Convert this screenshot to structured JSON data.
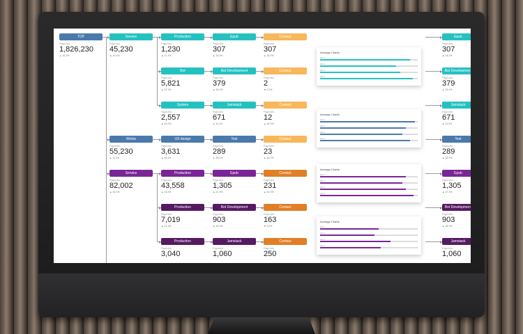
{
  "colors": {
    "teal": "#24c1c1",
    "blue": "#4a79ac",
    "purple": "#7a2596",
    "dark_purple": "#561a61",
    "orange_light": "#f9b65a",
    "orange_dark": "#e07f25",
    "up": "#3cb043",
    "down": "#d94040"
  },
  "root": {
    "label": "TOP",
    "sublabel": "Pageview",
    "value": "1,826,230",
    "change": "10.1%"
  },
  "level1": [
    {
      "label": "Service",
      "sublabel": "Pageview",
      "value": "45,230",
      "change": "10.1%"
    },
    {
      "label": "Works",
      "sublabel": "Pageview",
      "value": "55,230",
      "change": "11.1%"
    },
    {
      "label": "Service",
      "sublabel": "Pageview",
      "value": "82,002",
      "change": "10.1%"
    }
  ],
  "level2": [
    {
      "label": "Production",
      "sublabel": "Pageview",
      "value": "1,230",
      "change": "17.1%"
    },
    {
      "label": "Bot",
      "sublabel": "Pageview",
      "value": "5,821",
      "change": "17.1%"
    },
    {
      "label": "System",
      "sublabel": "Pageview",
      "value": "2,557",
      "change": "13.1%"
    },
    {
      "label": "UX design",
      "sublabel": "Pageview",
      "value": "3,631",
      "change": "19.1%"
    },
    {
      "label": "Production",
      "sublabel": "Pageview",
      "value": "43,558",
      "change": "11.1%"
    },
    {
      "label": "Production",
      "sublabel": "Pageview",
      "value": "7,019",
      "change": "17.1%"
    },
    {
      "label": "Production",
      "sublabel": "Pageview",
      "value": "3,040",
      "change": ""
    }
  ],
  "level3": [
    {
      "label": "Epub",
      "sublabel": "Pageview",
      "value": "307",
      "change": "13.1%"
    },
    {
      "label": "Bot Development",
      "sublabel": "Pageview",
      "value": "379",
      "change": "13.1%"
    },
    {
      "label": "Jamstack",
      "sublabel": "Pageview",
      "value": "671",
      "change": "11.1%"
    },
    {
      "label": "Test",
      "sublabel": "Pageview",
      "value": "289",
      "change": "15.1%"
    },
    {
      "label": "Epub",
      "sublabel": "Pageview",
      "value": "1,305",
      "change": "17.1%"
    },
    {
      "label": "Bot Development",
      "sublabel": "Pageview",
      "value": "903",
      "change": "15.1%"
    },
    {
      "label": "Jamstack",
      "sublabel": "Pageview",
      "value": "1,060",
      "change": ""
    }
  ],
  "level4": [
    {
      "label": "Contact",
      "sublabel": "Pageview",
      "value": "307",
      "change": "10.1%"
    },
    {
      "label": "Contact",
      "sublabel": "Pageview",
      "value": "2",
      "change": "0.1%"
    },
    {
      "label": "Contact",
      "sublabel": "Pageview",
      "value": "12",
      "change": "10.1%"
    },
    {
      "label": "Contact",
      "sublabel": "Pageview",
      "value": "23",
      "change": "10.1%"
    },
    {
      "label": "Contact",
      "sublabel": "Pageview",
      "value": "231",
      "change": "10.1%"
    },
    {
      "label": "Contact",
      "sublabel": "Pageview",
      "value": "163",
      "change": "0.1%"
    },
    {
      "label": "Contact",
      "sublabel": "Pageview",
      "value": "250",
      "change": ""
    }
  ],
  "cards": [
    {
      "title": "Average Charts",
      "rows": [
        {
          "label": "Item 1",
          "value": 0.92
        },
        {
          "label": "Item 2",
          "value": 0.78
        },
        {
          "label": "Item 3",
          "value": 0.82
        },
        {
          "label": "Item 4",
          "value": 0.95
        }
      ]
    },
    {
      "title": "Average Charts",
      "rows": [
        {
          "label": "Item 1",
          "value": 0.97
        },
        {
          "label": "Item 2",
          "value": 0.88
        },
        {
          "label": "Item 3",
          "value": 0.84
        },
        {
          "label": "Item 4",
          "value": 0.92
        }
      ]
    },
    {
      "title": "Average Charts",
      "rows": [
        {
          "label": "Item 1",
          "value": 0.88
        },
        {
          "label": "Item 2",
          "value": 0.84
        },
        {
          "label": "Item 3",
          "value": 0.88
        },
        {
          "label": "Item 4",
          "value": 0.96
        }
      ]
    },
    {
      "title": "Average Charts",
      "rows": [
        {
          "label": "Item 1",
          "value": 0.6
        },
        {
          "label": "Item 2",
          "value": 0.56
        },
        {
          "label": "Item 3",
          "value": 0.72
        },
        {
          "label": "Item 4",
          "value": 0.62
        }
      ]
    }
  ],
  "level5": [
    {
      "label": "Epub",
      "sublabel": "Pageview",
      "value": "307",
      "change": "13.1%"
    },
    {
      "label": "Bot Development",
      "sublabel": "Pageview",
      "value": "379",
      "change": "13.1%"
    },
    {
      "label": "Jamstack",
      "sublabel": "Pageview",
      "value": "671",
      "change": "11.1%"
    },
    {
      "label": "Test",
      "sublabel": "Pageview",
      "value": "289",
      "change": "15.1%"
    },
    {
      "label": "Epub",
      "sublabel": "Pageview",
      "value": "1,305",
      "change": "17.1%"
    },
    {
      "label": "Bot Development",
      "sublabel": "Pageview",
      "value": "903",
      "change": "15.1%"
    },
    {
      "label": "Jamstack",
      "sublabel": "Pageview",
      "value": "1,060",
      "change": ""
    }
  ]
}
